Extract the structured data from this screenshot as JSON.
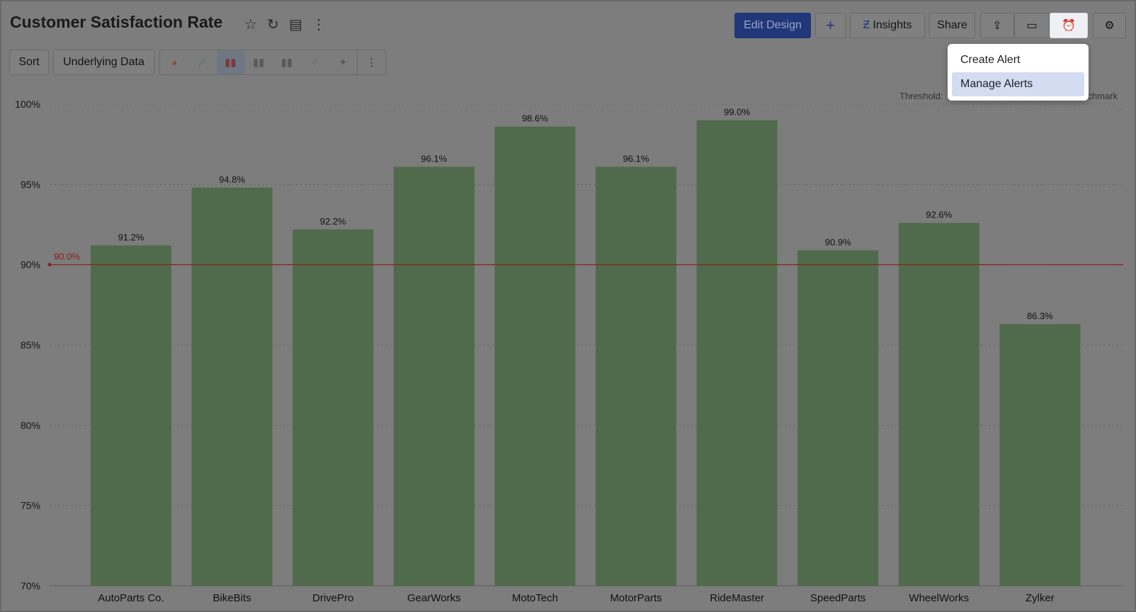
{
  "header": {
    "title": "Customer Satisfaction Rate",
    "icons": [
      "star-icon",
      "refresh-icon",
      "save-icon",
      "more-vertical-icon"
    ]
  },
  "toolbar": {
    "sort": "Sort",
    "underlying_data": "Underlying Data",
    "chart_types": [
      "pie-chart-icon",
      "line-chart-icon",
      "bar-chart-icon",
      "stacked-bar-icon",
      "grouped-bar-icon",
      "scatter-icon",
      "map-icon"
    ],
    "selected": "bar-chart-icon"
  },
  "actions": {
    "edit_design": "Edit Design",
    "add": "+",
    "insights": "Insights",
    "share": "Share",
    "icons": [
      "export-icon",
      "comment-icon",
      "alarm-icon",
      "gear-icon"
    ]
  },
  "alert_menu": {
    "items": [
      "Create Alert",
      "Manage Alerts"
    ],
    "highlighted": "Manage Alerts"
  },
  "legend": {
    "threshold": "Threshold:",
    "benchmark": "Benchmark"
  },
  "colors": {
    "bar": "#506b4b",
    "threshold": "#8b1d1d",
    "primary": "#21377a"
  },
  "chart_data": {
    "type": "bar",
    "categories": [
      "AutoParts Co.",
      "BikeBits",
      "DrivePro",
      "GearWorks",
      "MotoTech",
      "MotorParts",
      "RideMaster",
      "SpeedParts",
      "WheelWorks",
      "Zylker"
    ],
    "values": [
      91.2,
      94.8,
      92.2,
      96.1,
      98.6,
      96.1,
      99.0,
      90.9,
      92.6,
      86.3
    ],
    "data_labels": [
      "91.2%",
      "94.8%",
      "92.2%",
      "96.1%",
      "98.6%",
      "96.1%",
      "99.0%",
      "90.9%",
      "92.6%",
      "86.3%"
    ],
    "ylim": [
      70,
      100
    ],
    "yticks": [
      70,
      75,
      80,
      85,
      90,
      95,
      100
    ],
    "ytick_labels": [
      "70%",
      "75%",
      "80%",
      "85%",
      "90%",
      "95%",
      "100%"
    ],
    "threshold": {
      "value": 90,
      "label": "90.0%"
    },
    "grid": true
  }
}
